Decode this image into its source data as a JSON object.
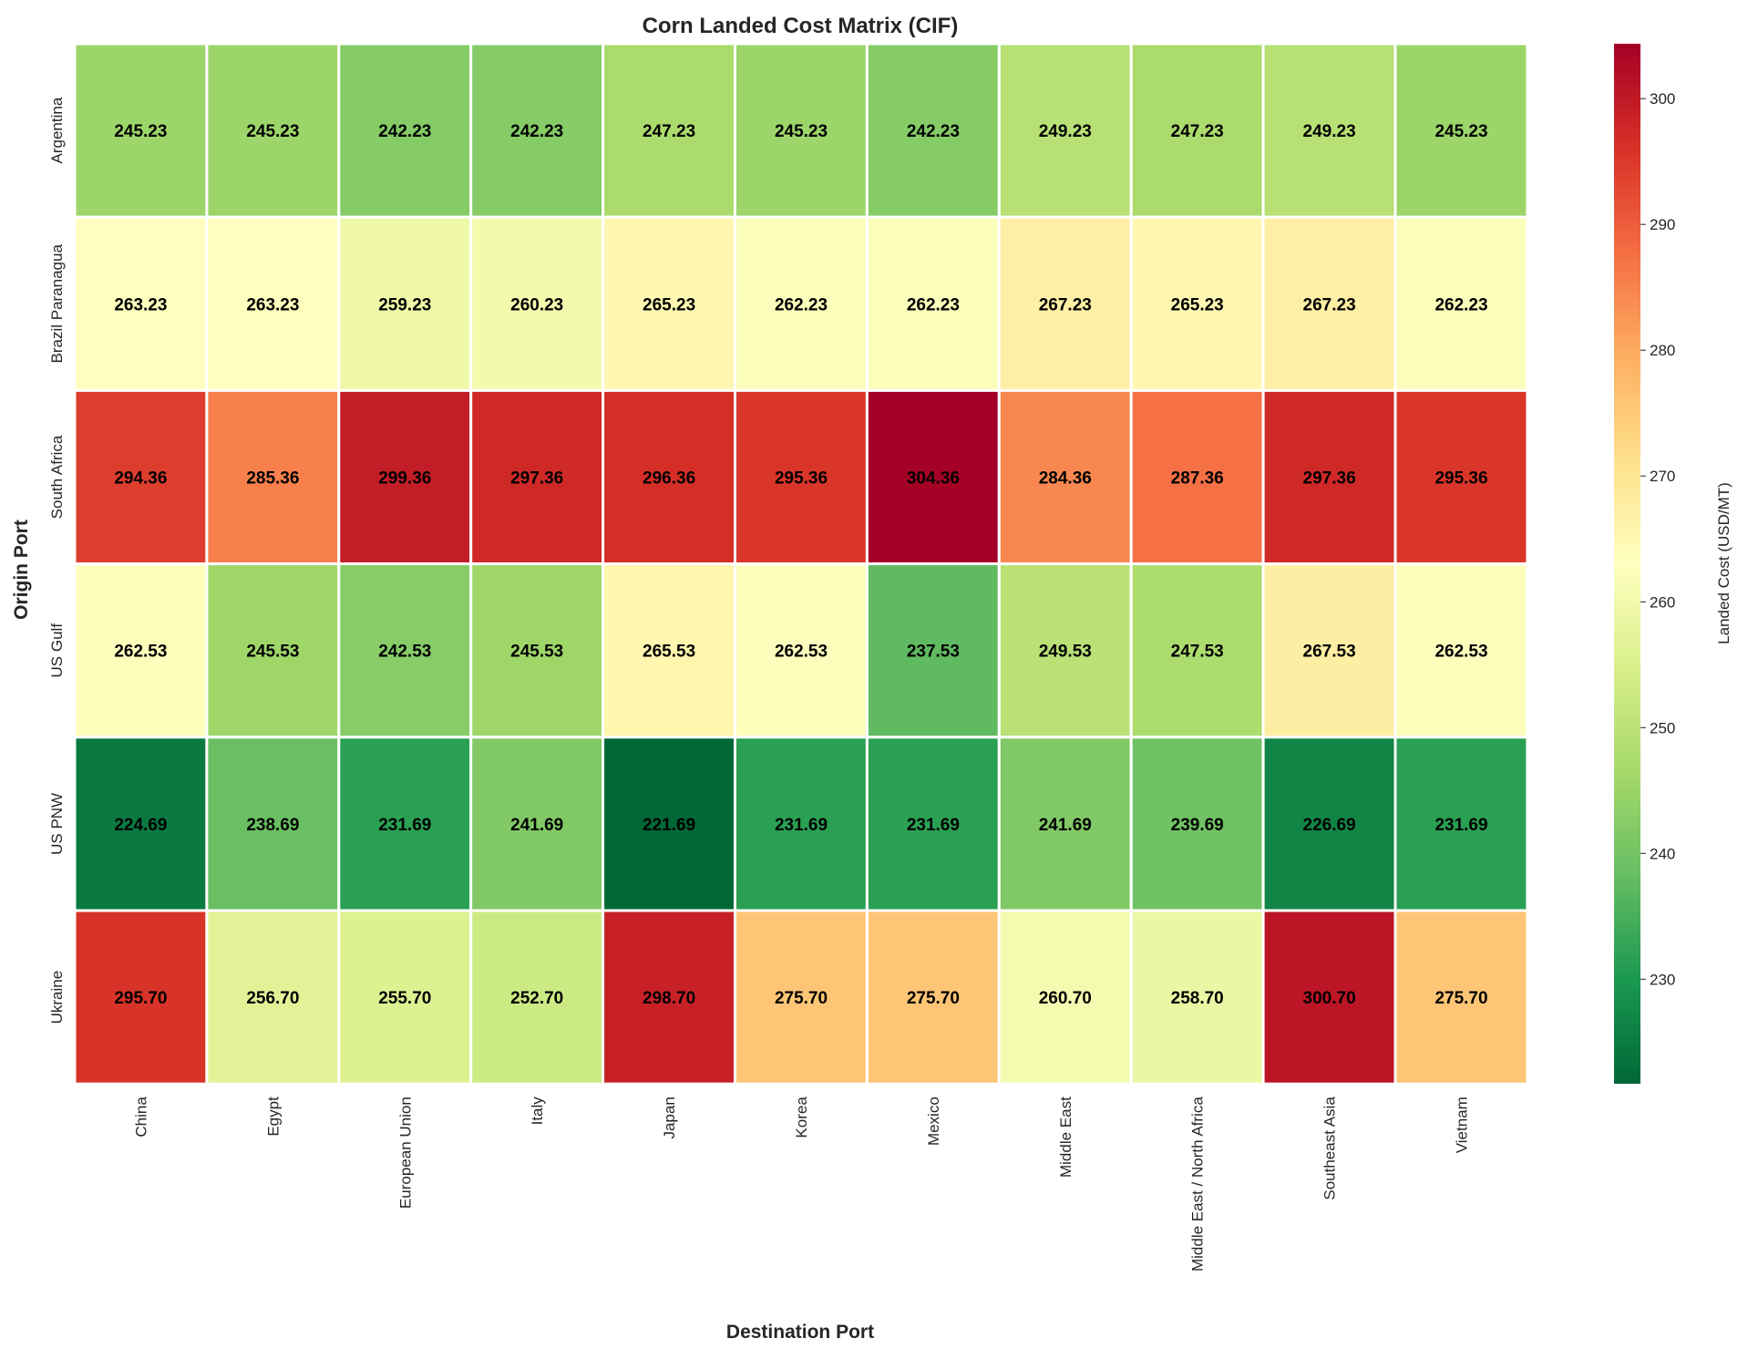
{
  "chart_data": {
    "type": "heatmap",
    "title": "Corn Landed Cost Matrix (CIF)",
    "xlabel": "Destination Port",
    "ylabel": "Origin Port",
    "colorbar_label": "Landed Cost (USD/MT)",
    "colormap": "RdYlGn_r",
    "vmin": 221.69,
    "vmax": 304.36,
    "colorbar_ticks": [
      230,
      240,
      250,
      260,
      270,
      280,
      290,
      300
    ],
    "columns": [
      "China",
      "Egypt",
      "European Union",
      "Italy",
      "Japan",
      "Korea",
      "Mexico",
      "Middle East",
      "Middle East / North Africa",
      "Southeast Asia",
      "Vietnam"
    ],
    "rows": [
      "Argentina",
      "Brazil Paranagua",
      "South Africa",
      "US Gulf",
      "US PNW",
      "Ukraine"
    ],
    "values": [
      [
        245.23,
        245.23,
        242.23,
        242.23,
        247.23,
        245.23,
        242.23,
        249.23,
        247.23,
        249.23,
        245.23
      ],
      [
        263.23,
        263.23,
        259.23,
        260.23,
        265.23,
        262.23,
        262.23,
        267.23,
        265.23,
        267.23,
        262.23
      ],
      [
        294.36,
        285.36,
        299.36,
        297.36,
        296.36,
        295.36,
        304.36,
        284.36,
        287.36,
        297.36,
        295.36
      ],
      [
        262.53,
        245.53,
        242.53,
        245.53,
        265.53,
        262.53,
        237.53,
        249.53,
        247.53,
        267.53,
        262.53
      ],
      [
        224.69,
        238.69,
        231.69,
        241.69,
        221.69,
        231.69,
        231.69,
        241.69,
        239.69,
        226.69,
        231.69
      ],
      [
        295.7,
        256.7,
        255.7,
        252.7,
        298.7,
        275.7,
        275.7,
        260.7,
        258.7,
        300.7,
        275.7
      ]
    ],
    "annotation_format": "0.00",
    "grid": false
  }
}
